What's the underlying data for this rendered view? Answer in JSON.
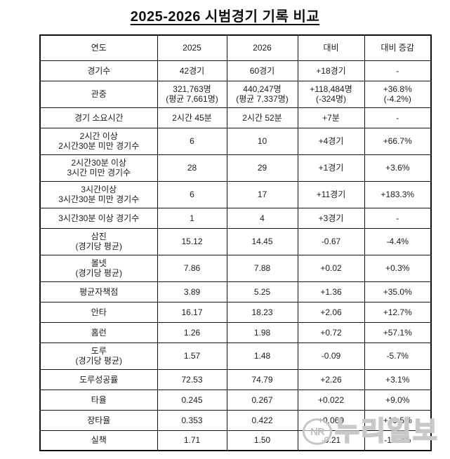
{
  "title": "2025-2026 시범경기 기록 비교",
  "colors": {
    "table_border": "#111111",
    "text": "#1c1c1c",
    "watermark_gray": "#c6c6c6",
    "background": "#ffffff"
  },
  "watermark": {
    "logo_text": "NR",
    "text": "누리일보"
  },
  "chart_data": {
    "type": "table",
    "title": "2025-2026 시범경기 기록 비교",
    "columns": [
      "연도",
      "2025",
      "2026",
      "대비",
      "대비 증감"
    ],
    "rows": [
      {
        "cells": [
          [
            "경기수"
          ],
          [
            "42경기"
          ],
          [
            "60경기"
          ],
          [
            "+18경기"
          ],
          [
            "-"
          ]
        ]
      },
      {
        "cells": [
          [
            "관중"
          ],
          [
            "321,763명",
            "(평균 7,661명)"
          ],
          [
            "440,247명",
            "(평균 7,337명)"
          ],
          [
            "+118,484명",
            "(-324명)"
          ],
          [
            "+36.8%",
            "(-4.2%)"
          ]
        ]
      },
      {
        "cells": [
          [
            "경기 소요시간"
          ],
          [
            "2시간 45분"
          ],
          [
            "2시간 52분"
          ],
          [
            "+7분"
          ],
          [
            "-"
          ]
        ]
      },
      {
        "cells": [
          [
            "2시간 이상",
            "2시간30분 미만 경기수"
          ],
          [
            "6"
          ],
          [
            "10"
          ],
          [
            "+4경기"
          ],
          [
            "+66.7%"
          ]
        ]
      },
      {
        "cells": [
          [
            "2시간30분 이상",
            "3시간 미만 경기수"
          ],
          [
            "28"
          ],
          [
            "29"
          ],
          [
            "+1경기"
          ],
          [
            "+3.6%"
          ]
        ]
      },
      {
        "cells": [
          [
            "3시간이상",
            "3시간30분 미만 경기수"
          ],
          [
            "6"
          ],
          [
            "17"
          ],
          [
            "+11경기"
          ],
          [
            "+183.3%"
          ]
        ]
      },
      {
        "cells": [
          [
            "3시간30분 이상 경기수"
          ],
          [
            "1"
          ],
          [
            "4"
          ],
          [
            "+3경기"
          ],
          [
            "-"
          ]
        ]
      },
      {
        "cells": [
          [
            "삼진",
            "(경기당 평균)"
          ],
          [
            "15.12"
          ],
          [
            "14.45"
          ],
          [
            "-0.67"
          ],
          [
            "-4.4%"
          ]
        ]
      },
      {
        "cells": [
          [
            "볼넷",
            "(경기당 평균)"
          ],
          [
            "7.86"
          ],
          [
            "7.88"
          ],
          [
            "+0.02"
          ],
          [
            "+0.3%"
          ]
        ]
      },
      {
        "cells": [
          [
            "평균자책점"
          ],
          [
            "3.89"
          ],
          [
            "5.25"
          ],
          [
            "+1.36"
          ],
          [
            "+35.0%"
          ]
        ]
      },
      {
        "cells": [
          [
            "안타"
          ],
          [
            "16.17"
          ],
          [
            "18.23"
          ],
          [
            "+2.06"
          ],
          [
            "+12.7%"
          ]
        ]
      },
      {
        "cells": [
          [
            "홈런"
          ],
          [
            "1.26"
          ],
          [
            "1.98"
          ],
          [
            "+0.72"
          ],
          [
            "+57.1%"
          ]
        ]
      },
      {
        "cells": [
          [
            "도루",
            "(경기당 평균)"
          ],
          [
            "1.57"
          ],
          [
            "1.48"
          ],
          [
            "-0.09"
          ],
          [
            "-5.7%"
          ]
        ]
      },
      {
        "cells": [
          [
            "도루성공률"
          ],
          [
            "72.53"
          ],
          [
            "74.79"
          ],
          [
            "+2.26"
          ],
          [
            "+3.1%"
          ]
        ]
      },
      {
        "cells": [
          [
            "타율"
          ],
          [
            "0.245"
          ],
          [
            "0.267"
          ],
          [
            "+0.022"
          ],
          [
            "+9.0%"
          ]
        ]
      },
      {
        "cells": [
          [
            "장타율"
          ],
          [
            "0.353"
          ],
          [
            "0.422"
          ],
          [
            "+0.069"
          ],
          [
            "+19.5%"
          ]
        ]
      },
      {
        "cells": [
          [
            "실책"
          ],
          [
            "1.71"
          ],
          [
            "1.50"
          ],
          [
            "-0.21"
          ],
          [
            "-12.3%"
          ]
        ]
      }
    ]
  }
}
